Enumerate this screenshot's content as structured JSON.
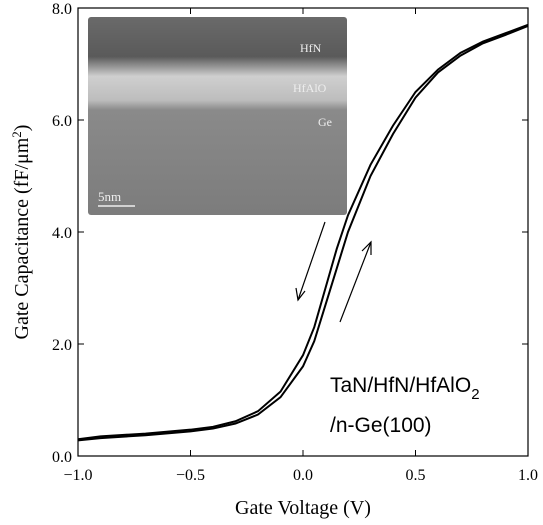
{
  "chart_data": {
    "type": "line",
    "xlabel": "Gate Voltage (V)",
    "ylabel": [
      "Gate Capacitance (fF/μm",
      "2",
      ")"
    ],
    "x": [
      -1.0,
      -0.9,
      -0.7,
      -0.5,
      -0.4,
      -0.3,
      -0.2,
      -0.1,
      0.0,
      0.05,
      0.1,
      0.15,
      0.2,
      0.3,
      0.4,
      0.5,
      0.6,
      0.7,
      0.8,
      0.9,
      1.0
    ],
    "series": [
      {
        "color": "#000000",
        "values": [
          0.3,
          0.35,
          0.4,
          0.47,
          0.52,
          0.62,
          0.8,
          1.15,
          1.8,
          2.3,
          3.0,
          3.7,
          4.3,
          5.2,
          5.9,
          6.5,
          6.9,
          7.2,
          7.4,
          7.55,
          7.7
        ]
      },
      {
        "color": "#000000",
        "values": [
          0.28,
          0.32,
          0.37,
          0.44,
          0.49,
          0.58,
          0.74,
          1.05,
          1.6,
          2.05,
          2.7,
          3.35,
          4.0,
          5.0,
          5.75,
          6.4,
          6.85,
          7.15,
          7.37,
          7.52,
          7.68
        ]
      }
    ],
    "xlim": [
      -1.0,
      1.0
    ],
    "xticks": [
      {
        "value": -1.0,
        "label": "−1.0"
      },
      {
        "value": -0.5,
        "label": "−0.5"
      },
      {
        "value": 0.0,
        "label": "0.0"
      },
      {
        "value": 0.5,
        "label": "0.5"
      },
      {
        "value": 1.0,
        "label": "1.0"
      }
    ],
    "ylim": [
      0.0,
      8.0
    ],
    "yticks": [
      {
        "value": 0.0,
        "label": "0.0"
      },
      {
        "value": 2.0,
        "label": "2.0"
      },
      {
        "value": 4.0,
        "label": "4.0"
      },
      {
        "value": 6.0,
        "label": "6.0"
      },
      {
        "value": 8.0,
        "label": "8.0"
      }
    ],
    "inset_labels": [
      "HfN",
      "HfAlO",
      "Ge",
      "5nm"
    ],
    "annotation": [
      "TaN/HfN/HfAlO",
      "2",
      "/n-Ge(100)"
    ]
  }
}
